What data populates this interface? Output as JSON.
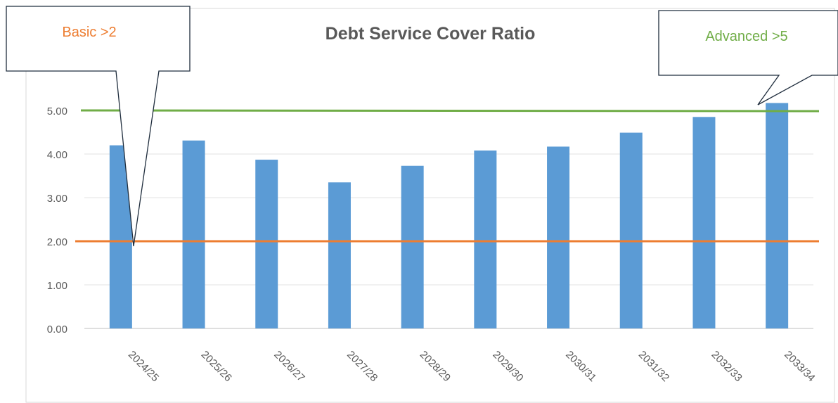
{
  "chart_data": {
    "type": "bar",
    "title": "Debt Service Cover Ratio",
    "categories": [
      "2024/25",
      "2025/26",
      "2026/27",
      "2027/28",
      "2028/29",
      "2029/30",
      "2030/31",
      "2031/32",
      "2032/33",
      "2033/34"
    ],
    "series": [
      {
        "values": [
          4.2,
          4.31,
          3.87,
          3.35,
          3.73,
          4.08,
          4.17,
          4.49,
          4.85,
          5.17
        ]
      }
    ],
    "ylim": [
      0,
      5.5
    ],
    "yticks": [
      "0.00",
      "1.00",
      "2.00",
      "3.00",
      "4.00",
      "5.00"
    ],
    "threshold_lines": [
      {
        "label": "Basic >2",
        "value": 2,
        "color": "#ed7d31"
      },
      {
        "label": "Advanced >5",
        "value": 5,
        "color": "#70ad47"
      }
    ],
    "bar_color": "#5b9bd5",
    "grid": true
  }
}
